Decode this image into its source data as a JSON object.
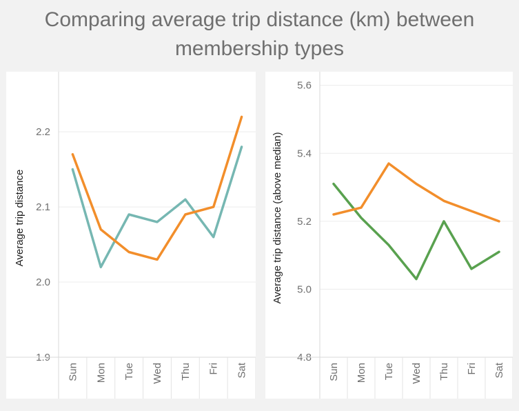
{
  "title": "Comparing average trip distance (km) between membership types",
  "chart_data": [
    {
      "type": "line",
      "categories": [
        "Sun",
        "Mon",
        "Tue",
        "Wed",
        "Thu",
        "Fri",
        "Sat"
      ],
      "ylabel": "Average trip distance",
      "xlabel": "",
      "ylim": [
        1.9,
        2.28
      ],
      "yticks": [
        "1.9",
        "2.0",
        "2.1",
        "2.2"
      ],
      "grid": true,
      "series": [
        {
          "color": "#76b7b2",
          "values": [
            2.15,
            2.02,
            2.09,
            2.08,
            2.11,
            2.06,
            2.18
          ]
        },
        {
          "color": "#f28e2b",
          "values": [
            2.17,
            2.07,
            2.04,
            2.03,
            2.09,
            2.1,
            2.22
          ]
        }
      ]
    },
    {
      "type": "line",
      "categories": [
        "Sun",
        "Mon",
        "Tue",
        "Wed",
        "Thu",
        "Fri",
        "Sat"
      ],
      "ylabel": "Average trip distance (above median)",
      "xlabel": "",
      "ylim": [
        4.8,
        5.64
      ],
      "yticks": [
        "4.8",
        "5.0",
        "5.2",
        "5.4",
        "5.6"
      ],
      "grid": true,
      "series": [
        {
          "color": "#59a14f",
          "values": [
            5.31,
            5.21,
            5.13,
            5.03,
            5.2,
            5.06,
            5.11
          ]
        },
        {
          "color": "#f28e2b",
          "values": [
            5.22,
            5.24,
            5.37,
            5.31,
            5.26,
            5.23,
            5.2
          ]
        }
      ]
    }
  ]
}
